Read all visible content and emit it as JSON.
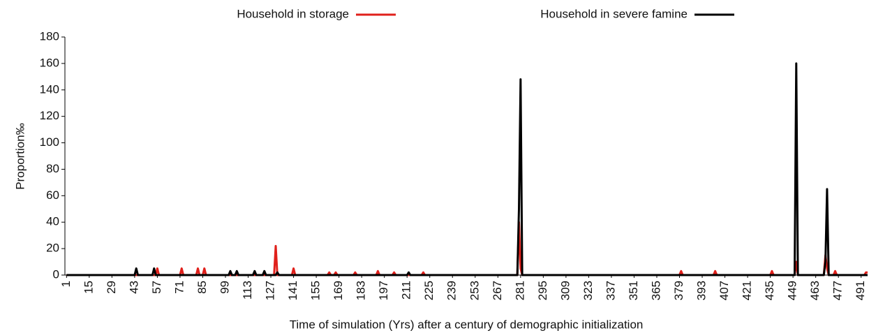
{
  "chart_data": {
    "type": "line",
    "xlabel": "Time of simulation (Yrs) after a century of demographic initialization",
    "ylabel": "Proportion‰",
    "x": [
      1,
      43,
      44,
      45,
      54,
      55,
      56,
      57,
      58,
      71,
      72,
      73,
      81,
      82,
      83,
      85,
      86,
      87,
      101,
      102,
      103,
      105,
      106,
      107,
      116,
      117,
      118,
      122,
      123,
      124,
      129,
      130,
      131,
      132,
      140,
      141,
      142,
      162,
      163,
      164,
      166,
      167,
      168,
      178,
      179,
      180,
      192,
      193,
      194,
      202,
      203,
      204,
      211,
      212,
      213,
      220,
      221,
      222,
      279,
      280,
      281,
      282,
      379,
      380,
      381,
      400,
      401,
      402,
      435,
      436,
      437,
      450,
      451,
      452,
      468,
      469,
      470,
      471,
      474,
      475,
      476,
      493,
      494,
      495
    ],
    "series": [
      {
        "name": "Household in storage",
        "color": "#e0201b",
        "values": [
          0,
          0,
          0,
          0,
          0,
          0,
          0,
          5,
          0,
          0,
          5,
          0,
          0,
          5,
          0,
          0,
          5,
          0,
          0,
          0,
          0,
          0,
          0,
          0,
          0,
          0,
          0,
          0,
          0,
          0,
          0,
          22,
          0,
          0,
          0,
          5,
          0,
          0,
          2,
          0,
          0,
          2,
          0,
          0,
          2,
          0,
          0,
          3,
          0,
          0,
          2,
          0,
          0,
          0,
          0,
          0,
          2,
          0,
          0,
          40,
          5,
          0,
          0,
          3,
          0,
          0,
          3,
          0,
          0,
          3,
          0,
          0,
          10,
          0,
          0,
          15,
          5,
          0,
          0,
          3,
          0,
          0,
          2,
          2
        ]
      },
      {
        "name": "Household in severe famine",
        "color": "#000000",
        "values": [
          0,
          0,
          5,
          0,
          0,
          5,
          0,
          0,
          0,
          0,
          0,
          0,
          0,
          0,
          0,
          0,
          0,
          0,
          0,
          3,
          0,
          0,
          3,
          0,
          0,
          3,
          0,
          0,
          3,
          0,
          0,
          0,
          2,
          0,
          0,
          0,
          0,
          0,
          0,
          0,
          0,
          0,
          0,
          0,
          0,
          0,
          0,
          0,
          0,
          0,
          0,
          0,
          0,
          2,
          0,
          0,
          0,
          0,
          0,
          50,
          148,
          0,
          0,
          0,
          0,
          0,
          0,
          0,
          0,
          0,
          0,
          0,
          160,
          0,
          0,
          10,
          65,
          0,
          0,
          0,
          0,
          0,
          0,
          0
        ]
      }
    ],
    "xlim": [
      0,
      495
    ],
    "xticks": [
      1,
      15,
      29,
      43,
      57,
      71,
      85,
      99,
      113,
      127,
      141,
      155,
      169,
      183,
      197,
      211,
      225,
      239,
      253,
      267,
      281,
      295,
      309,
      323,
      337,
      351,
      365,
      379,
      393,
      407,
      421,
      435,
      449,
      463,
      477,
      491
    ],
    "ylim": [
      0,
      180
    ],
    "yticks": [
      0,
      20,
      40,
      60,
      80,
      100,
      120,
      140,
      160,
      180
    ]
  }
}
